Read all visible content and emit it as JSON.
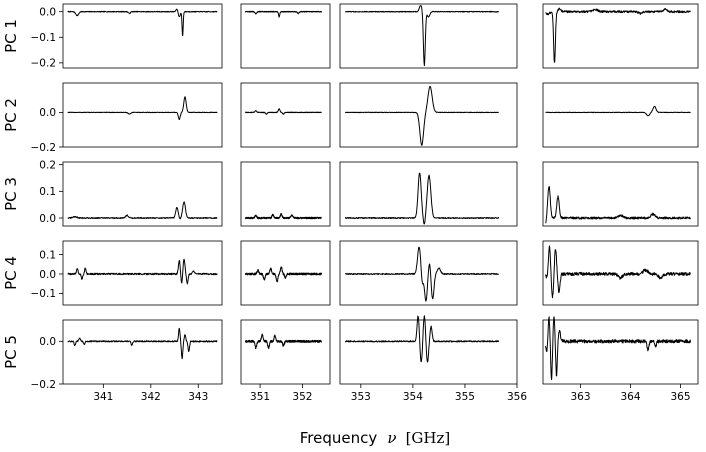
{
  "chart_data": {
    "type": "line",
    "xlabel": {
      "text": "Frequency",
      "symbol": "ν",
      "unit": "[GHz]"
    },
    "line_color": "#000000",
    "rows": [
      {
        "label": "PC 1",
        "ylim": [
          -0.22,
          0.03
        ],
        "yticks": [
          0.0,
          -0.1,
          -0.2
        ],
        "ytick_labels": [
          "0.0",
          "−0.1",
          "−0.2"
        ]
      },
      {
        "label": "PC 2",
        "ylim": [
          -0.2,
          0.17
        ],
        "yticks": [
          0.0,
          -0.2
        ],
        "ytick_labels": [
          "0.0",
          "−0.2"
        ]
      },
      {
        "label": "PC 3",
        "ylim": [
          -0.03,
          0.21
        ],
        "yticks": [
          0.2,
          0.1,
          0.0
        ],
        "ytick_labels": [
          "0.2",
          "0.1",
          "0.0"
        ]
      },
      {
        "label": "PC 4",
        "ylim": [
          -0.16,
          0.17
        ],
        "yticks": [
          0.1,
          0.0,
          -0.1
        ],
        "ytick_labels": [
          "0.1",
          "0.0",
          "−0.1"
        ]
      },
      {
        "label": "PC 5",
        "ylim": [
          -0.2,
          0.1
        ],
        "yticks": [
          0.0,
          -0.2
        ],
        "ytick_labels": [
          "0.0",
          "−0.2"
        ]
      }
    ],
    "columns": [
      {
        "xlim": [
          340.15,
          343.5
        ],
        "xticks": [
          341,
          342,
          343
        ],
        "xtick_labels": [
          "341",
          "342",
          "343"
        ]
      },
      {
        "xlim": [
          350.55,
          352.65
        ],
        "xticks": [
          351,
          352
        ],
        "xtick_labels": [
          "351",
          "352"
        ]
      },
      {
        "xlim": [
          352.6,
          356.0
        ],
        "xticks": [
          353,
          354,
          355,
          356
        ],
        "xtick_labels": [
          "353",
          "354",
          "355",
          "356"
        ]
      },
      {
        "xlim": [
          362.25,
          365.35
        ],
        "xticks": [
          363,
          364,
          365
        ],
        "xtick_labels": [
          "363",
          "364",
          "365"
        ]
      }
    ],
    "panels": [
      {
        "row": 0,
        "col": 0,
        "x_range": [
          340.25,
          343.4
        ],
        "features": [
          [
            340.45,
            -0.015,
            0.03
          ],
          [
            341.55,
            -0.007,
            0.02
          ],
          [
            342.6,
            -0.02,
            0.02
          ],
          [
            342.67,
            -0.095,
            0.012
          ],
          [
            342.55,
            0.01,
            0.02
          ]
        ]
      },
      {
        "row": 0,
        "col": 1,
        "x_range": [
          350.65,
          352.45
        ],
        "features": [
          [
            350.9,
            -0.008,
            0.02
          ],
          [
            351.45,
            -0.02,
            0.015
          ],
          [
            351.9,
            -0.007,
            0.02
          ]
        ]
      },
      {
        "row": 0,
        "col": 2,
        "x_range": [
          352.7,
          355.65
        ],
        "features": [
          [
            354.15,
            0.025,
            0.025
          ],
          [
            354.22,
            -0.21,
            0.018
          ],
          [
            354.3,
            -0.02,
            0.025
          ]
        ]
      },
      {
        "row": 0,
        "col": 3,
        "x_range": [
          362.3,
          365.2
        ],
        "features": [
          [
            362.35,
            -0.01,
            0.03
          ],
          [
            362.48,
            -0.2,
            0.018
          ],
          [
            362.58,
            0.01,
            0.03
          ],
          [
            363.3,
            0.008,
            0.05
          ],
          [
            364.2,
            -0.007,
            0.04
          ],
          [
            364.7,
            0.01,
            0.03
          ]
        ],
        "noise": 0.004
      },
      {
        "row": 1,
        "col": 0,
        "x_range": [
          340.25,
          343.4
        ],
        "features": [
          [
            341.55,
            -0.01,
            0.025
          ],
          [
            342.6,
            -0.04,
            0.02
          ],
          [
            342.72,
            0.09,
            0.025
          ]
        ]
      },
      {
        "row": 1,
        "col": 1,
        "x_range": [
          350.65,
          352.45
        ],
        "features": [
          [
            350.9,
            0.01,
            0.02
          ],
          [
            351.15,
            -0.01,
            0.02
          ],
          [
            351.45,
            0.02,
            0.02
          ],
          [
            351.55,
            -0.01,
            0.02
          ]
        ]
      },
      {
        "row": 1,
        "col": 2,
        "x_range": [
          352.7,
          355.65
        ],
        "features": [
          [
            354.17,
            -0.19,
            0.035
          ],
          [
            354.33,
            0.15,
            0.04
          ]
        ]
      },
      {
        "row": 1,
        "col": 3,
        "x_range": [
          362.3,
          365.2
        ],
        "features": [
          [
            364.35,
            -0.02,
            0.03
          ],
          [
            364.48,
            0.035,
            0.03
          ]
        ]
      },
      {
        "row": 2,
        "col": 0,
        "x_range": [
          340.25,
          343.4
        ],
        "features": [
          [
            340.4,
            0.005,
            0.04
          ],
          [
            341.5,
            0.01,
            0.03
          ],
          [
            342.55,
            0.04,
            0.025
          ],
          [
            342.7,
            0.06,
            0.03
          ],
          [
            342.62,
            -0.005,
            0.02
          ]
        ],
        "noise": 0.002
      },
      {
        "row": 2,
        "col": 1,
        "x_range": [
          350.65,
          352.45
        ],
        "features": [
          [
            350.9,
            0.01,
            0.02
          ],
          [
            351.3,
            0.012,
            0.02
          ],
          [
            351.5,
            0.015,
            0.02
          ],
          [
            351.75,
            0.01,
            0.025
          ]
        ],
        "noise": 0.003
      },
      {
        "row": 2,
        "col": 2,
        "x_range": [
          352.7,
          355.65
        ],
        "features": [
          [
            354.13,
            0.17,
            0.03
          ],
          [
            354.22,
            -0.03,
            0.02
          ],
          [
            354.31,
            0.16,
            0.035
          ]
        ],
        "noise": 0.002
      },
      {
        "row": 2,
        "col": 3,
        "x_range": [
          362.3,
          365.2
        ],
        "features": [
          [
            362.3,
            -0.02,
            0.02
          ],
          [
            362.37,
            0.12,
            0.025
          ],
          [
            362.45,
            0.0,
            0.02
          ],
          [
            362.55,
            0.08,
            0.025
          ],
          [
            363.8,
            0.01,
            0.05
          ],
          [
            364.45,
            0.015,
            0.04
          ]
        ],
        "noise": 0.004
      },
      {
        "row": 3,
        "col": 0,
        "x_range": [
          340.25,
          343.4
        ],
        "features": [
          [
            340.45,
            0.03,
            0.015
          ],
          [
            340.55,
            -0.025,
            0.015
          ],
          [
            340.62,
            0.03,
            0.015
          ],
          [
            342.6,
            0.07,
            0.018
          ],
          [
            342.65,
            -0.05,
            0.015
          ],
          [
            342.7,
            0.08,
            0.018
          ],
          [
            342.77,
            -0.05,
            0.015
          ],
          [
            342.9,
            0.015,
            0.02
          ]
        ],
        "noise": 0.004
      },
      {
        "row": 3,
        "col": 1,
        "x_range": [
          350.65,
          352.45
        ],
        "features": [
          [
            350.95,
            0.02,
            0.02
          ],
          [
            351.1,
            -0.03,
            0.02
          ],
          [
            351.25,
            0.03,
            0.02
          ],
          [
            351.4,
            -0.04,
            0.02
          ],
          [
            351.5,
            0.035,
            0.02
          ],
          [
            351.6,
            -0.02,
            0.02
          ]
        ],
        "noise": 0.005
      },
      {
        "row": 3,
        "col": 2,
        "x_range": [
          352.7,
          355.65
        ],
        "features": [
          [
            354.12,
            0.14,
            0.03
          ],
          [
            354.18,
            -0.06,
            0.02
          ],
          [
            354.25,
            -0.14,
            0.025
          ],
          [
            354.32,
            0.06,
            0.02
          ],
          [
            354.38,
            -0.13,
            0.025
          ],
          [
            354.5,
            0.03,
            0.03
          ]
        ],
        "noise": 0.003
      },
      {
        "row": 3,
        "col": 3,
        "x_range": [
          362.3,
          365.2
        ],
        "features": [
          [
            362.33,
            -0.02,
            0.02
          ],
          [
            362.38,
            0.14,
            0.02
          ],
          [
            362.44,
            -0.12,
            0.02
          ],
          [
            362.5,
            0.13,
            0.02
          ],
          [
            362.57,
            -0.1,
            0.02
          ],
          [
            363.8,
            -0.02,
            0.04
          ],
          [
            364.3,
            0.02,
            0.05
          ],
          [
            364.6,
            -0.02,
            0.04
          ]
        ],
        "noise": 0.008
      },
      {
        "row": 4,
        "col": 0,
        "x_range": [
          340.25,
          343.4
        ],
        "features": [
          [
            340.4,
            -0.02,
            0.015
          ],
          [
            340.5,
            0.015,
            0.015
          ],
          [
            340.6,
            -0.015,
            0.015
          ],
          [
            341.6,
            -0.02,
            0.015
          ],
          [
            342.6,
            0.06,
            0.015
          ],
          [
            342.66,
            -0.08,
            0.015
          ],
          [
            342.72,
            0.03,
            0.015
          ],
          [
            342.8,
            -0.05,
            0.015
          ]
        ],
        "noise": 0.003
      },
      {
        "row": 4,
        "col": 1,
        "x_range": [
          350.65,
          352.45
        ],
        "features": [
          [
            350.9,
            -0.03,
            0.02
          ],
          [
            351.05,
            0.03,
            0.02
          ],
          [
            351.2,
            -0.03,
            0.02
          ],
          [
            351.35,
            0.025,
            0.02
          ],
          [
            351.55,
            -0.02,
            0.02
          ]
        ],
        "noise": 0.005
      },
      {
        "row": 4,
        "col": 2,
        "x_range": [
          352.7,
          355.65
        ],
        "features": [
          [
            354.1,
            0.12,
            0.02
          ],
          [
            354.16,
            -0.1,
            0.02
          ],
          [
            354.22,
            0.12,
            0.02
          ],
          [
            354.28,
            -0.1,
            0.02
          ],
          [
            354.35,
            0.07,
            0.02
          ]
        ],
        "noise": 0.003
      },
      {
        "row": 4,
        "col": 3,
        "x_range": [
          362.3,
          365.2
        ],
        "features": [
          [
            362.32,
            -0.05,
            0.015
          ],
          [
            362.37,
            0.11,
            0.015
          ],
          [
            362.42,
            -0.18,
            0.015
          ],
          [
            362.47,
            0.12,
            0.015
          ],
          [
            362.52,
            -0.16,
            0.015
          ],
          [
            362.58,
            0.05,
            0.02
          ],
          [
            364.35,
            -0.04,
            0.02
          ],
          [
            364.5,
            -0.02,
            0.02
          ]
        ],
        "noise": 0.008
      }
    ]
  }
}
